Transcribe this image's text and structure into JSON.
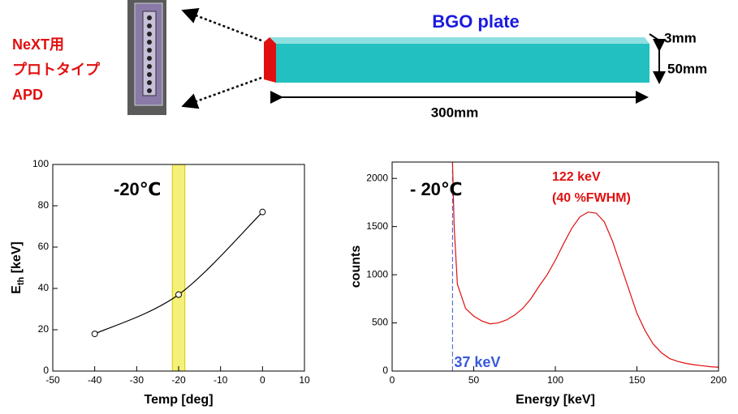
{
  "diagram": {
    "apd_label": [
      "NeXT用",
      "プロトタイプ",
      "APD"
    ],
    "plate_title": "BGO plate",
    "thickness": "3mm",
    "height": "50mm",
    "length": "300mm"
  },
  "chart_data": [
    {
      "type": "line",
      "x": [
        -40,
        -20,
        0
      ],
      "values": [
        18,
        37,
        77
      ],
      "color": "#000000",
      "markers": true,
      "smooth": true,
      "xlim": [
        -50,
        10
      ],
      "xticks": [
        -50,
        -40,
        -30,
        -20,
        -10,
        0,
        10
      ],
      "ylim": [
        0,
        100
      ],
      "yticks": [
        0,
        20,
        40,
        60,
        80,
        100
      ],
      "band": [
        -21.5,
        -18.5
      ],
      "band_color": "#f5f07a",
      "xlabel": "Temp [deg]",
      "ylabel": [
        "E",
        "th",
        " [keV]"
      ],
      "annotations": [
        "-20℃"
      ]
    },
    {
      "type": "line",
      "x": [
        37,
        38,
        40,
        45,
        50,
        55,
        60,
        65,
        70,
        75,
        80,
        85,
        90,
        95,
        100,
        105,
        110,
        115,
        120,
        125,
        130,
        135,
        140,
        145,
        150,
        155,
        160,
        165,
        170,
        175,
        180,
        185,
        190,
        195,
        200
      ],
      "values": [
        2170,
        1500,
        900,
        650,
        570,
        520,
        490,
        500,
        530,
        580,
        650,
        750,
        880,
        1000,
        1150,
        1320,
        1480,
        1600,
        1650,
        1640,
        1550,
        1350,
        1100,
        850,
        600,
        420,
        280,
        190,
        130,
        100,
        80,
        65,
        55,
        45,
        40
      ],
      "color": "#e01010",
      "markers": false,
      "smooth": false,
      "xlim": [
        0,
        200
      ],
      "xticks": [
        0,
        50,
        100,
        150,
        200
      ],
      "ylim": [
        0,
        2170
      ],
      "yticks": [
        0,
        500,
        1000,
        1500,
        2000
      ],
      "vline": {
        "value": 37,
        "label": "37 keV",
        "color": "#3a5ad8"
      },
      "xlabel": "Energy [keV]",
      "ylabel": [
        "counts"
      ],
      "annotations": [
        "- 20℃",
        "122 keV",
        "(40 %FWHM)"
      ]
    }
  ]
}
